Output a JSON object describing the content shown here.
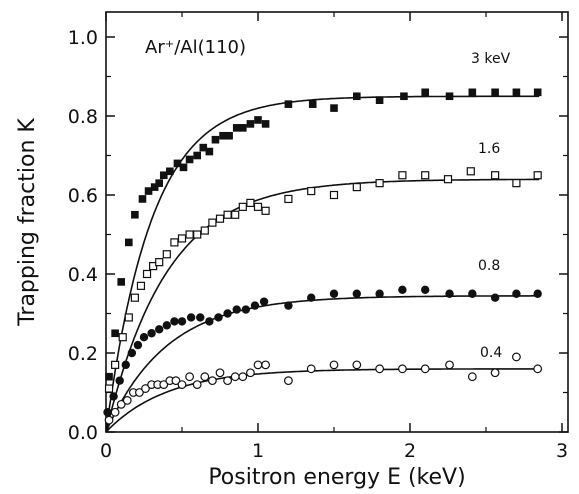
{
  "chart_data": {
    "type": "scatter",
    "xlabel": "Positron energy E (keV)",
    "ylabel": "Trapping fraction K",
    "annotation": "Ar⁺/Al(110)",
    "xlim": [
      0,
      3
    ],
    "ylim": [
      0,
      1.0
    ],
    "xticks": [
      0,
      1,
      2,
      3
    ],
    "xtick_labels": [
      "0",
      "1",
      "2",
      "3"
    ],
    "yticks": [
      0.0,
      0.2,
      0.4,
      0.6,
      0.8,
      1.0
    ],
    "ytick_labels": [
      "0.0",
      "0.2",
      "0.4",
      "0.6",
      "0.8",
      "1.0"
    ],
    "grid": false,
    "series": [
      {
        "name": "3 keV",
        "marker": "filled-square",
        "fit": {
          "saturation": 0.85,
          "length": 0.3
        },
        "points": [
          [
            0.02,
            0.14
          ],
          [
            0.06,
            0.25
          ],
          [
            0.1,
            0.38
          ],
          [
            0.15,
            0.48
          ],
          [
            0.19,
            0.55
          ],
          [
            0.24,
            0.59
          ],
          [
            0.28,
            0.61
          ],
          [
            0.32,
            0.62
          ],
          [
            0.35,
            0.63
          ],
          [
            0.38,
            0.65
          ],
          [
            0.42,
            0.66
          ],
          [
            0.47,
            0.68
          ],
          [
            0.51,
            0.67
          ],
          [
            0.55,
            0.69
          ],
          [
            0.6,
            0.7
          ],
          [
            0.64,
            0.72
          ],
          [
            0.68,
            0.71
          ],
          [
            0.72,
            0.74
          ],
          [
            0.77,
            0.75
          ],
          [
            0.81,
            0.75
          ],
          [
            0.86,
            0.77
          ],
          [
            0.9,
            0.77
          ],
          [
            0.95,
            0.78
          ],
          [
            1.0,
            0.79
          ],
          [
            1.05,
            0.78
          ],
          [
            1.2,
            0.83
          ],
          [
            1.36,
            0.83
          ],
          [
            1.5,
            0.82
          ],
          [
            1.65,
            0.85
          ],
          [
            1.8,
            0.84
          ],
          [
            1.96,
            0.85
          ],
          [
            2.1,
            0.86
          ],
          [
            2.26,
            0.85
          ],
          [
            2.41,
            0.86
          ],
          [
            2.56,
            0.86
          ],
          [
            2.7,
            0.86
          ],
          [
            2.84,
            0.86
          ]
        ]
      },
      {
        "name": "1.6",
        "marker": "open-square",
        "fit": {
          "saturation": 0.64,
          "length": 0.4
        },
        "points": [
          [
            0.02,
            0.11
          ],
          [
            0.06,
            0.17
          ],
          [
            0.11,
            0.24
          ],
          [
            0.15,
            0.29
          ],
          [
            0.19,
            0.34
          ],
          [
            0.23,
            0.37
          ],
          [
            0.27,
            0.4
          ],
          [
            0.31,
            0.42
          ],
          [
            0.35,
            0.43
          ],
          [
            0.4,
            0.45
          ],
          [
            0.45,
            0.48
          ],
          [
            0.5,
            0.49
          ],
          [
            0.55,
            0.5
          ],
          [
            0.6,
            0.5
          ],
          [
            0.65,
            0.51
          ],
          [
            0.7,
            0.53
          ],
          [
            0.75,
            0.54
          ],
          [
            0.8,
            0.55
          ],
          [
            0.85,
            0.55
          ],
          [
            0.9,
            0.57
          ],
          [
            0.95,
            0.58
          ],
          [
            1.0,
            0.57
          ],
          [
            1.05,
            0.56
          ],
          [
            1.2,
            0.59
          ],
          [
            1.35,
            0.61
          ],
          [
            1.5,
            0.6
          ],
          [
            1.65,
            0.62
          ],
          [
            1.8,
            0.63
          ],
          [
            1.95,
            0.65
          ],
          [
            2.1,
            0.65
          ],
          [
            2.25,
            0.64
          ],
          [
            2.4,
            0.66
          ],
          [
            2.56,
            0.65
          ],
          [
            2.7,
            0.63
          ],
          [
            2.84,
            0.65
          ]
        ]
      },
      {
        "name": "0.8",
        "marker": "filled-circle",
        "fit": {
          "saturation": 0.345,
          "length": 0.4
        },
        "points": [
          [
            0.01,
            0.05
          ],
          [
            0.05,
            0.09
          ],
          [
            0.09,
            0.13
          ],
          [
            0.13,
            0.17
          ],
          [
            0.17,
            0.2
          ],
          [
            0.21,
            0.22
          ],
          [
            0.25,
            0.24
          ],
          [
            0.3,
            0.25
          ],
          [
            0.35,
            0.26
          ],
          [
            0.4,
            0.27
          ],
          [
            0.45,
            0.28
          ],
          [
            0.5,
            0.28
          ],
          [
            0.56,
            0.29
          ],
          [
            0.62,
            0.29
          ],
          [
            0.68,
            0.28
          ],
          [
            0.74,
            0.29
          ],
          [
            0.8,
            0.3
          ],
          [
            0.86,
            0.31
          ],
          [
            0.92,
            0.31
          ],
          [
            0.98,
            0.32
          ],
          [
            1.04,
            0.33
          ],
          [
            1.2,
            0.32
          ],
          [
            1.35,
            0.34
          ],
          [
            1.5,
            0.35
          ],
          [
            1.65,
            0.35
          ],
          [
            1.8,
            0.35
          ],
          [
            1.95,
            0.36
          ],
          [
            2.1,
            0.36
          ],
          [
            2.26,
            0.35
          ],
          [
            2.41,
            0.35
          ],
          [
            2.56,
            0.34
          ],
          [
            2.7,
            0.35
          ],
          [
            2.84,
            0.35
          ]
        ]
      },
      {
        "name": "0.4",
        "marker": "open-circle",
        "fit": {
          "saturation": 0.16,
          "length": 0.4
        },
        "points": [
          [
            0.02,
            0.03
          ],
          [
            0.06,
            0.05
          ],
          [
            0.1,
            0.07
          ],
          [
            0.14,
            0.08
          ],
          [
            0.18,
            0.1
          ],
          [
            0.22,
            0.1
          ],
          [
            0.26,
            0.11
          ],
          [
            0.3,
            0.12
          ],
          [
            0.34,
            0.12
          ],
          [
            0.38,
            0.12
          ],
          [
            0.42,
            0.13
          ],
          [
            0.46,
            0.13
          ],
          [
            0.5,
            0.12
          ],
          [
            0.55,
            0.14
          ],
          [
            0.6,
            0.12
          ],
          [
            0.65,
            0.14
          ],
          [
            0.7,
            0.13
          ],
          [
            0.75,
            0.15
          ],
          [
            0.8,
            0.13
          ],
          [
            0.85,
            0.14
          ],
          [
            0.9,
            0.14
          ],
          [
            0.95,
            0.15
          ],
          [
            1.0,
            0.17
          ],
          [
            1.05,
            0.17
          ],
          [
            1.2,
            0.13
          ],
          [
            1.35,
            0.16
          ],
          [
            1.5,
            0.17
          ],
          [
            1.65,
            0.17
          ],
          [
            1.8,
            0.16
          ],
          [
            1.95,
            0.16
          ],
          [
            2.1,
            0.16
          ],
          [
            2.26,
            0.17
          ],
          [
            2.41,
            0.14
          ],
          [
            2.56,
            0.15
          ],
          [
            2.7,
            0.19
          ],
          [
            2.84,
            0.16
          ]
        ]
      }
    ]
  }
}
